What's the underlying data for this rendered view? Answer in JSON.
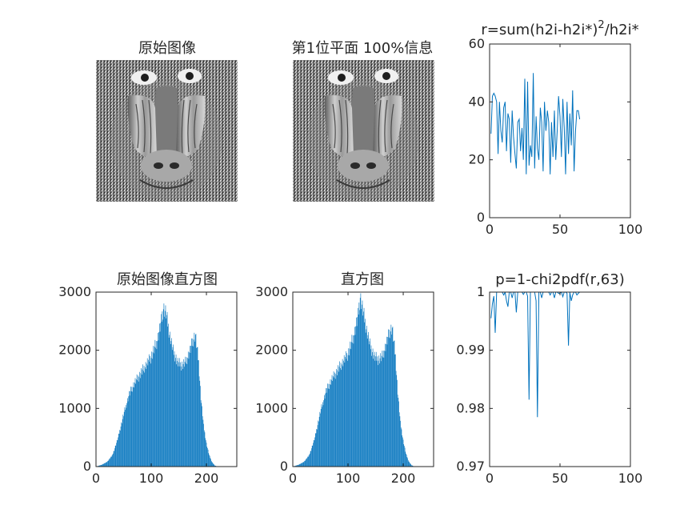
{
  "colors": {
    "series": "#0072BD",
    "axis": "#262626",
    "background": "#ffffff"
  },
  "panels": {
    "original": {
      "title": "原始图像"
    },
    "plane": {
      "title": "第1位平面 100%信息"
    },
    "r_plot": {
      "title_main": "r=sum(h2i-h2i*)",
      "title_sup": "2",
      "title_tail": "/h2i*"
    },
    "hist_orig": {
      "title": "原始图像直方图"
    },
    "hist_new": {
      "title": "直方图"
    },
    "p_plot": {
      "title": "p=1-chi2pdf(r,63)"
    }
  },
  "chart_data": [
    {
      "id": "r_plot",
      "type": "line",
      "title": "r=sum(h2i-h2i*)^2/h2i*",
      "xlim": [
        0,
        100
      ],
      "ylim": [
        0,
        60
      ],
      "xticks": [
        0,
        50,
        100
      ],
      "yticks": [
        0,
        20,
        40,
        60
      ],
      "series": [
        {
          "x": [
            1,
            2,
            3,
            4,
            5,
            6,
            7,
            8,
            9,
            10,
            11,
            12,
            13,
            14,
            15,
            16,
            17,
            18,
            19,
            20,
            21,
            22,
            23,
            24,
            25,
            26,
            27,
            28,
            29,
            30,
            31,
            32,
            33,
            34,
            35,
            36,
            37,
            38,
            39,
            40,
            41,
            42,
            43,
            44,
            45,
            46,
            47,
            48,
            49,
            50,
            51,
            52,
            53,
            54,
            55,
            56,
            57,
            58,
            59,
            60,
            61,
            62,
            63,
            64
          ],
          "values": [
            29,
            42,
            43,
            42,
            40,
            22,
            40,
            30,
            26,
            38,
            40,
            23,
            36,
            34,
            19,
            37,
            28,
            22,
            17,
            33,
            34,
            23,
            31,
            20,
            48,
            15,
            47,
            18,
            25,
            21,
            50,
            17,
            35,
            24,
            20,
            38,
            33,
            16,
            40,
            30,
            37,
            33,
            15,
            33,
            21,
            37,
            20,
            30,
            42,
            35,
            21,
            41,
            31,
            15,
            40,
            22,
            36,
            25,
            44,
            16,
            30,
            37,
            37,
            34
          ]
        }
      ]
    },
    {
      "id": "hist_orig",
      "type": "bar",
      "title": "原始图像直方图",
      "xlim": [
        0,
        255
      ],
      "ylim": [
        0,
        3000
      ],
      "xticks": [
        0,
        100,
        200
      ],
      "yticks": [
        0,
        1000,
        2000,
        3000
      ],
      "bins": {
        "from": 0,
        "to": 255
      },
      "envelope": [
        [
          0,
          0
        ],
        [
          10,
          30
        ],
        [
          20,
          80
        ],
        [
          30,
          200
        ],
        [
          40,
          500
        ],
        [
          50,
          900
        ],
        [
          60,
          1250
        ],
        [
          70,
          1450
        ],
        [
          80,
          1600
        ],
        [
          90,
          1750
        ],
        [
          100,
          1900
        ],
        [
          110,
          2150
        ],
        [
          118,
          2500
        ],
        [
          122,
          2750
        ],
        [
          127,
          2650
        ],
        [
          133,
          2300
        ],
        [
          140,
          2000
        ],
        [
          148,
          1800
        ],
        [
          155,
          1750
        ],
        [
          162,
          1800
        ],
        [
          170,
          2000
        ],
        [
          176,
          2200
        ],
        [
          180,
          2280
        ],
        [
          186,
          1800
        ],
        [
          190,
          1200
        ],
        [
          195,
          700
        ],
        [
          200,
          400
        ],
        [
          205,
          200
        ],
        [
          210,
          80
        ],
        [
          215,
          20
        ],
        [
          220,
          0
        ],
        [
          255,
          0
        ]
      ]
    },
    {
      "id": "hist_new",
      "type": "bar",
      "title": "直方图",
      "xlim": [
        0,
        255
      ],
      "ylim": [
        0,
        3000
      ],
      "xticks": [
        0,
        100,
        200
      ],
      "yticks": [
        0,
        1000,
        2000,
        3000
      ],
      "bins": {
        "from": 0,
        "to": 255
      },
      "envelope": [
        [
          0,
          0
        ],
        [
          10,
          30
        ],
        [
          20,
          80
        ],
        [
          30,
          200
        ],
        [
          40,
          500
        ],
        [
          50,
          950
        ],
        [
          60,
          1300
        ],
        [
          70,
          1500
        ],
        [
          80,
          1650
        ],
        [
          90,
          1800
        ],
        [
          100,
          1950
        ],
        [
          110,
          2250
        ],
        [
          118,
          2600
        ],
        [
          122,
          2950
        ],
        [
          127,
          2700
        ],
        [
          133,
          2400
        ],
        [
          140,
          2100
        ],
        [
          148,
          1900
        ],
        [
          155,
          1850
        ],
        [
          162,
          1900
        ],
        [
          170,
          2150
        ],
        [
          176,
          2350
        ],
        [
          180,
          2400
        ],
        [
          186,
          1900
        ],
        [
          190,
          1300
        ],
        [
          195,
          750
        ],
        [
          200,
          450
        ],
        [
          205,
          220
        ],
        [
          210,
          90
        ],
        [
          215,
          25
        ],
        [
          220,
          0
        ],
        [
          255,
          0
        ]
      ]
    },
    {
      "id": "p_plot",
      "type": "line",
      "title": "p=1-chi2pdf(r,63)",
      "xlim": [
        0,
        100
      ],
      "ylim": [
        0.97,
        1
      ],
      "xticks": [
        0,
        50,
        100
      ],
      "yticks": [
        0.97,
        0.98,
        0.99,
        1
      ],
      "series": [
        {
          "x": [
            1,
            2,
            3,
            4,
            5,
            6,
            7,
            8,
            9,
            10,
            11,
            12,
            13,
            14,
            15,
            16,
            17,
            18,
            19,
            20,
            21,
            22,
            23,
            24,
            25,
            26,
            27,
            28,
            29,
            30,
            31,
            32,
            33,
            34,
            35,
            36,
            37,
            38,
            39,
            40,
            41,
            42,
            43,
            44,
            45,
            46,
            47,
            48,
            49,
            50,
            51,
            52,
            53,
            54,
            55,
            56,
            57,
            58,
            59,
            60,
            61,
            62,
            63,
            64
          ],
          "values": [
            0.9955,
            0.998,
            0.9993,
            0.993,
            1,
            1,
            1,
            1,
            1,
            0.9995,
            1,
            0.9985,
            0.9975,
            1,
            1,
            0.999,
            1,
            1,
            0.9965,
            1,
            1,
            1,
            1,
            0.9996,
            1,
            1,
            0.9993,
            0.9815,
            1,
            1,
            1,
            1,
            0.9985,
            0.9785,
            1,
            1,
            0.999,
            1,
            1,
            1,
            1,
            1,
            0.9995,
            1,
            1,
            0.999,
            1,
            1,
            0.9998,
            0.9998,
            1,
            0.9992,
            1,
            1,
            0.9998,
            0.9908,
            1,
            0.9985,
            0.9995,
            1,
            1,
            0.9995,
            0.9998,
            1
          ]
        }
      ]
    }
  ]
}
